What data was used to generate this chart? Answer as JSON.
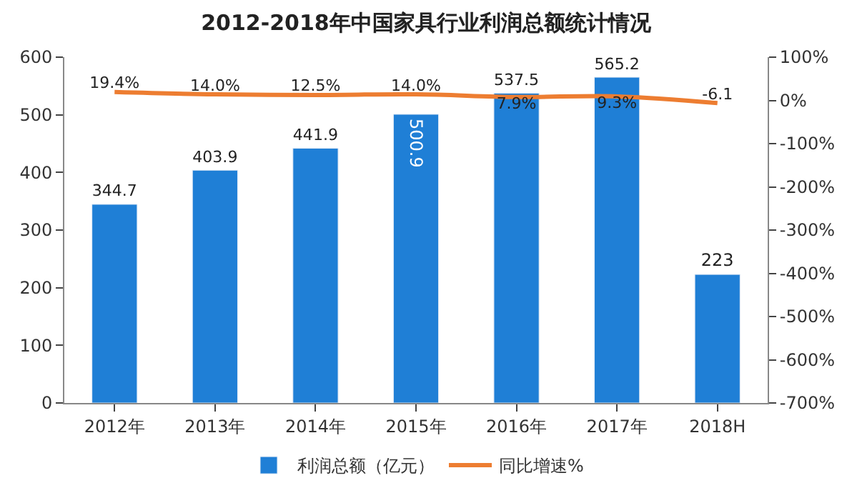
{
  "chart_data": {
    "type": "bar",
    "title": "2012-2018年中国家具行业利润总额统计情况",
    "categories": [
      "2012年",
      "2013年",
      "2014年",
      "2015年",
      "2016年",
      "2017年",
      "2018H"
    ],
    "series": [
      {
        "name": "利润总额（亿元）",
        "color": "#1f7fd6",
        "values": [
          344.7,
          403.9,
          441.9,
          500.9,
          537.5,
          565.2,
          223
        ],
        "data_labels": true
      },
      {
        "name": "同比增速%",
        "type": "line",
        "axis": "y2",
        "color": "#ed7d31",
        "values": [
          19.4,
          14.0,
          12.5,
          14.0,
          7.9,
          9.3,
          -6.1
        ],
        "value_labels": [
          "19.4%",
          "14.0%",
          "12.5%",
          "14.0%",
          "7.9%",
          "9.3%",
          "-6.1"
        ]
      }
    ],
    "ylim": [
      0,
      600
    ],
    "yticks": [
      0,
      100,
      200,
      300,
      400,
      500,
      600
    ],
    "y2lim": [
      -700,
      100
    ],
    "y2ticks": [
      {
        "value": -700,
        "label": "-700%"
      },
      {
        "value": -600,
        "label": "-600%"
      },
      {
        "value": -500,
        "label": "-500%"
      },
      {
        "value": -400,
        "label": "-400%"
      },
      {
        "value": -300,
        "label": "-300%"
      },
      {
        "value": -200,
        "label": "-200%"
      },
      {
        "value": -100,
        "label": "-100%"
      },
      {
        "value": 0,
        "label": "0%"
      },
      {
        "value": 100,
        "label": "100%"
      }
    ],
    "legend": "bottom",
    "marker": "none",
    "line_style": "solid"
  }
}
